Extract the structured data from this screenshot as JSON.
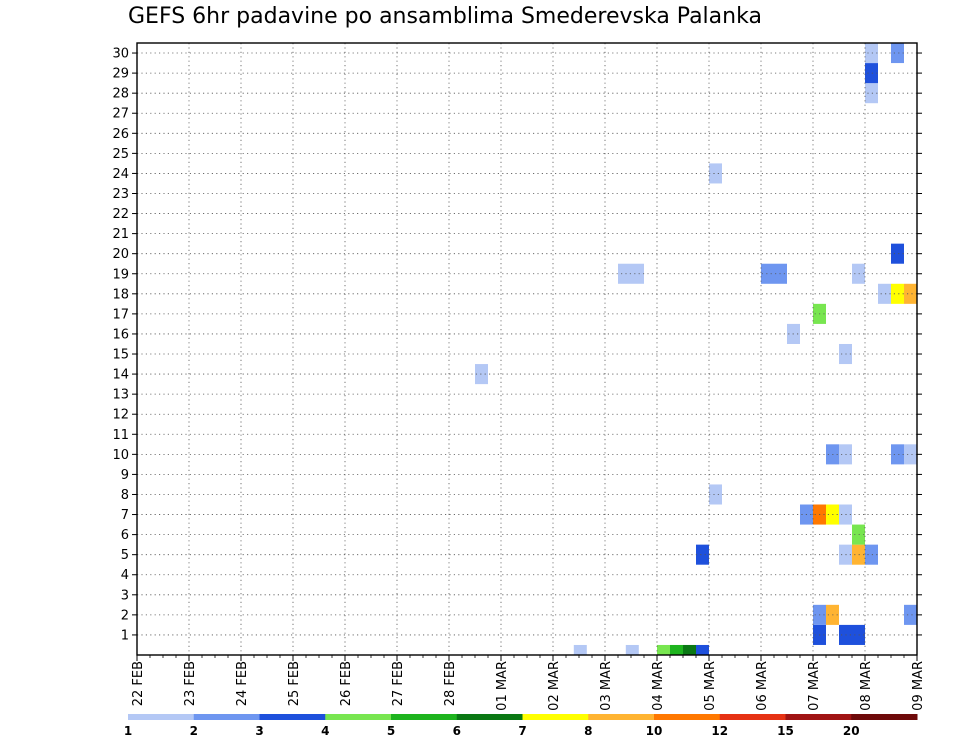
{
  "chart_data": {
    "type": "heatmap",
    "title": "GEFS 6hr padavine po ansamblima Smederevska Palanka",
    "x_ticks": [
      "22 FEB",
      "23 FEB",
      "24 FEB",
      "25 FEB",
      "26 FEB",
      "27 FEB",
      "28 FEB",
      "01 MAR",
      "02 MAR",
      "03 MAR",
      "04 MAR",
      "05 MAR",
      "06 MAR",
      "07 MAR",
      "08 MAR",
      "09 MAR"
    ],
    "y_ticks": [
      "1",
      "2",
      "3",
      "4",
      "5",
      "6",
      "7",
      "8",
      "9",
      "10",
      "11",
      "12",
      "13",
      "14",
      "15",
      "16",
      "17",
      "18",
      "19",
      "20",
      "21",
      "22",
      "23",
      "24",
      "25",
      "26",
      "27",
      "28",
      "29",
      "30"
    ],
    "grid": true,
    "legend": {
      "placement": "bottom",
      "labels": [
        "1",
        "2",
        "3",
        "4",
        "5",
        "6",
        "7",
        "8",
        "10",
        "12",
        "15",
        "20"
      ],
      "colors": [
        "#b4c8f5",
        "#6e96f0",
        "#1e50dc",
        "#78e650",
        "#1eb41e",
        "#0a7814",
        "#ffff00",
        "#ffb432",
        "#ff7800",
        "#e63214",
        "#a01414",
        "#6e0a0a"
      ]
    },
    "cells": [
      {
        "day": 8.4,
        "member": 0,
        "color": "#b4c8f5"
      },
      {
        "day": 9.4,
        "member": 0,
        "color": "#b4c8f5"
      },
      {
        "day": 10.0,
        "member": 0,
        "color": "#78e650"
      },
      {
        "day": 10.25,
        "member": 0,
        "color": "#1eb41e"
      },
      {
        "day": 10.5,
        "member": 0,
        "color": "#0a7814"
      },
      {
        "day": 10.75,
        "member": 0,
        "color": "#1e50dc"
      },
      {
        "day": 13.0,
        "member": 1,
        "color": "#1e50dc"
      },
      {
        "day": 13.5,
        "member": 1,
        "color": "#1e50dc"
      },
      {
        "day": 13.75,
        "member": 1,
        "color": "#1e50dc"
      },
      {
        "day": 13.0,
        "member": 2,
        "color": "#6e96f0"
      },
      {
        "day": 13.25,
        "member": 2,
        "color": "#ffb432"
      },
      {
        "day": 14.75,
        "member": 2,
        "color": "#6e96f0"
      },
      {
        "day": 10.75,
        "member": 5,
        "color": "#1e50dc"
      },
      {
        "day": 13.5,
        "member": 5,
        "color": "#b4c8f5"
      },
      {
        "day": 13.75,
        "member": 5,
        "color": "#ffb432"
      },
      {
        "day": 14.0,
        "member": 5,
        "color": "#6e96f0"
      },
      {
        "day": 13.75,
        "member": 6,
        "color": "#78e650"
      },
      {
        "day": 12.75,
        "member": 7,
        "color": "#6e96f0"
      },
      {
        "day": 13.0,
        "member": 7,
        "color": "#ff7800"
      },
      {
        "day": 13.25,
        "member": 7,
        "color": "#ffff00"
      },
      {
        "day": 13.5,
        "member": 7,
        "color": "#b4c8f5"
      },
      {
        "day": 11.0,
        "member": 8,
        "color": "#b4c8f5"
      },
      {
        "day": 13.25,
        "member": 10,
        "color": "#6e96f0"
      },
      {
        "day": 13.5,
        "member": 10,
        "color": "#b4c8f5"
      },
      {
        "day": 14.5,
        "member": 10,
        "color": "#6e96f0"
      },
      {
        "day": 14.75,
        "member": 10,
        "color": "#b4c8f5"
      },
      {
        "day": 6.5,
        "member": 14,
        "color": "#b4c8f5"
      },
      {
        "day": 13.5,
        "member": 15,
        "color": "#b4c8f5"
      },
      {
        "day": 12.5,
        "member": 16,
        "color": "#b4c8f5"
      },
      {
        "day": 13.0,
        "member": 17,
        "color": "#78e650"
      },
      {
        "day": 14.25,
        "member": 18,
        "color": "#b4c8f5"
      },
      {
        "day": 14.5,
        "member": 18,
        "color": "#ffff00"
      },
      {
        "day": 14.75,
        "member": 18,
        "color": "#ffb432"
      },
      {
        "day": 9.25,
        "member": 19,
        "color": "#b4c8f5"
      },
      {
        "day": 9.5,
        "member": 19,
        "color": "#b4c8f5"
      },
      {
        "day": 12.0,
        "member": 19,
        "color": "#6e96f0"
      },
      {
        "day": 12.25,
        "member": 19,
        "color": "#6e96f0"
      },
      {
        "day": 13.75,
        "member": 19,
        "color": "#b4c8f5"
      },
      {
        "day": 14.5,
        "member": 20,
        "color": "#1e50dc"
      },
      {
        "day": 11.0,
        "member": 24,
        "color": "#b4c8f5"
      },
      {
        "day": 14.0,
        "member": 28,
        "color": "#b4c8f5"
      },
      {
        "day": 14.0,
        "member": 29,
        "color": "#1e50dc"
      },
      {
        "day": 14.0,
        "member": 30,
        "color": "#b4c8f5"
      },
      {
        "day": 14.5,
        "member": 30,
        "color": "#6e96f0"
      }
    ]
  }
}
